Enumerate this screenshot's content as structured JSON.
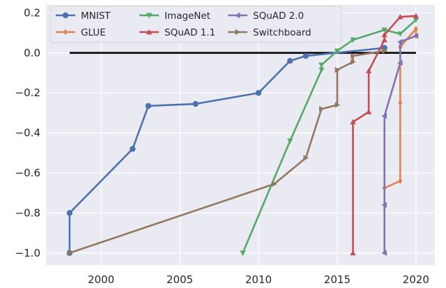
{
  "chart_data": {
    "type": "line",
    "title": "",
    "xlabel": "",
    "ylabel": "",
    "xlim": [
      1996.5,
      2021.2
    ],
    "ylim": [
      -1.06,
      0.24
    ],
    "x_ticks": [
      2000,
      2005,
      2010,
      2015,
      2020
    ],
    "y_ticks": [
      -1.0,
      -0.8,
      -0.6,
      -0.4,
      -0.2,
      0.0,
      0.2
    ],
    "x_tick_labels": [
      "2000",
      "2005",
      "2010",
      "2015",
      "2020"
    ],
    "y_tick_labels": [
      "−1.0",
      "−0.8",
      "−0.6",
      "−0.4",
      "−0.2",
      "0.0",
      "0.2"
    ],
    "grid": true,
    "legend_position": "top-left",
    "reference_line": {
      "y": 0.0,
      "x": [
        1998,
        2020
      ],
      "color": "#000000"
    },
    "series": [
      {
        "name": "MNIST",
        "color": "#4c72b0",
        "marker": "circle",
        "points": [
          [
            1998,
            -1.0
          ],
          [
            1998,
            -0.8
          ],
          [
            2002,
            -0.48
          ],
          [
            2003,
            -0.265
          ],
          [
            2006,
            -0.255
          ],
          [
            2010,
            -0.2
          ],
          [
            2012,
            -0.04
          ],
          [
            2013,
            -0.015
          ],
          [
            2018,
            0.025
          ]
        ]
      },
      {
        "name": "GLUE",
        "color": "#dd8452",
        "marker": "diamond",
        "points": [
          [
            2018,
            -0.675
          ],
          [
            2019,
            -0.64
          ],
          [
            2019,
            -0.25
          ],
          [
            2019,
            0.03
          ],
          [
            2020,
            0.12
          ],
          [
            2020,
            0.085
          ]
        ]
      },
      {
        "name": "ImageNet",
        "color": "#55a868",
        "marker": "triangle-down",
        "points": [
          [
            2009,
            -1.0
          ],
          [
            2012,
            -0.44
          ],
          [
            2014,
            -0.085
          ],
          [
            2014,
            -0.06
          ],
          [
            2015,
            0.01
          ],
          [
            2016,
            0.065
          ],
          [
            2018,
            0.115
          ],
          [
            2019,
            0.095
          ],
          [
            2020,
            0.165
          ]
        ]
      },
      {
        "name": "SQuAD 1.1",
        "color": "#c44e52",
        "marker": "triangle-up",
        "points": [
          [
            2016,
            -1.0
          ],
          [
            2016,
            -0.345
          ],
          [
            2017,
            -0.295
          ],
          [
            2017,
            -0.09
          ],
          [
            2018,
            0.065
          ],
          [
            2018,
            0.09
          ],
          [
            2019,
            0.18
          ],
          [
            2020,
            0.185
          ]
        ]
      },
      {
        "name": "SQuAD 2.0",
        "color": "#8172b2",
        "marker": "triangle-left",
        "points": [
          [
            2018,
            -1.0
          ],
          [
            2018,
            -0.76
          ],
          [
            2018,
            -0.315
          ],
          [
            2019,
            -0.05
          ],
          [
            2019,
            0.055
          ],
          [
            2020,
            0.085
          ]
        ]
      },
      {
        "name": "Switchboard",
        "color": "#937860",
        "marker": "triangle-right",
        "points": [
          [
            1998,
            -1.0
          ],
          [
            2011,
            -0.655
          ],
          [
            2013,
            -0.525
          ],
          [
            2014,
            -0.28
          ],
          [
            2015,
            -0.26
          ],
          [
            2015,
            -0.085
          ],
          [
            2016,
            -0.045
          ],
          [
            2016,
            -0.015
          ],
          [
            2018,
            0.01
          ]
        ]
      }
    ]
  }
}
